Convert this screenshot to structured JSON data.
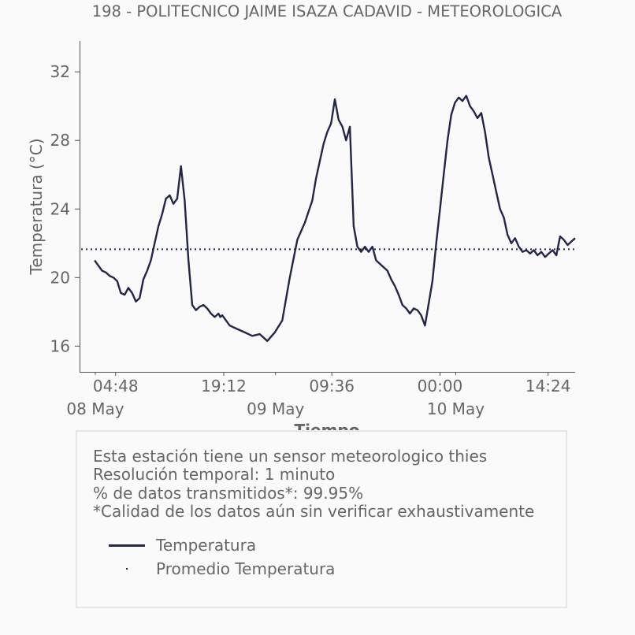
{
  "chart_data": {
    "type": "line",
    "title": "198 - POLITECNICO JAIME ISAZA CADAVID - METEOROLOGICA",
    "xlabel": "Tiempo",
    "ylabel": "Temperatura (°C)",
    "ylim": [
      14.5,
      33.8
    ],
    "xlim": [
      "2024-05-08 00:00",
      "2024-05-10 18:00"
    ],
    "y_ticks": [
      16,
      20,
      24,
      28,
      32
    ],
    "x_ticks": [
      {
        "time": "2024-05-08 04:48",
        "label": "04:48"
      },
      {
        "time": "2024-05-08 19:12",
        "label": "19:12"
      },
      {
        "time": "2024-05-09 09:36",
        "label": "09:36"
      },
      {
        "time": "2024-05-10 00:00",
        "label": "00:00"
      },
      {
        "time": "2024-05-10 14:24",
        "label": "14:24"
      }
    ],
    "date_labels": [
      {
        "time": "2024-05-08 00:00",
        "label": "08 May"
      },
      {
        "time": "2024-05-09 00:00",
        "label": "09 May"
      },
      {
        "time": "2024-05-10 00:00",
        "label": "10 May"
      }
    ],
    "grid": false,
    "series": [
      {
        "name": "Temperatura",
        "color": "#23264a",
        "style": "solid",
        "x": [
          "2024-05-08 02:00",
          "2024-05-08 02:30",
          "2024-05-08 03:00",
          "2024-05-08 03:30",
          "2024-05-08 04:00",
          "2024-05-08 04:30",
          "2024-05-08 05:00",
          "2024-05-08 05:30",
          "2024-05-08 06:00",
          "2024-05-08 06:30",
          "2024-05-08 07:00",
          "2024-05-08 07:30",
          "2024-05-08 08:00",
          "2024-05-08 08:30",
          "2024-05-08 09:00",
          "2024-05-08 09:30",
          "2024-05-08 10:00",
          "2024-05-08 10:30",
          "2024-05-08 11:00",
          "2024-05-08 11:30",
          "2024-05-08 12:00",
          "2024-05-08 12:30",
          "2024-05-08 13:00",
          "2024-05-08 13:30",
          "2024-05-08 14:00",
          "2024-05-08 14:30",
          "2024-05-08 15:00",
          "2024-05-08 15:30",
          "2024-05-08 16:00",
          "2024-05-08 16:30",
          "2024-05-08 17:00",
          "2024-05-08 17:30",
          "2024-05-08 18:00",
          "2024-05-08 18:15",
          "2024-05-08 18:30",
          "2024-05-08 18:45",
          "2024-05-08 19:00",
          "2024-05-08 20:00",
          "2024-05-08 21:00",
          "2024-05-08 22:00",
          "2024-05-08 23:00",
          "2024-05-09 00:00",
          "2024-05-09 01:00",
          "2024-05-09 02:00",
          "2024-05-09 03:00",
          "2024-05-09 04:00",
          "2024-05-09 05:00",
          "2024-05-09 06:00",
          "2024-05-09 07:00",
          "2024-05-09 07:30",
          "2024-05-09 08:00",
          "2024-05-09 08:30",
          "2024-05-09 09:00",
          "2024-05-09 09:30",
          "2024-05-09 10:00",
          "2024-05-09 10:30",
          "2024-05-09 11:00",
          "2024-05-09 11:30",
          "2024-05-09 12:00",
          "2024-05-09 12:30",
          "2024-05-09 13:00",
          "2024-05-09 13:30",
          "2024-05-09 14:00",
          "2024-05-09 14:30",
          "2024-05-09 15:00",
          "2024-05-09 15:30",
          "2024-05-09 16:00",
          "2024-05-09 16:15",
          "2024-05-09 16:30",
          "2024-05-09 16:45",
          "2024-05-09 17:00",
          "2024-05-09 17:30",
          "2024-05-09 18:00",
          "2024-05-09 18:30",
          "2024-05-09 19:00",
          "2024-05-09 19:30",
          "2024-05-09 20:00",
          "2024-05-09 20:30",
          "2024-05-09 21:00",
          "2024-05-09 21:30",
          "2024-05-09 22:00",
          "2024-05-09 22:30",
          "2024-05-09 23:00",
          "2024-05-09 23:30",
          "2024-05-10 00:00",
          "2024-05-10 00:30",
          "2024-05-10 01:00",
          "2024-05-10 01:30",
          "2024-05-10 02:00",
          "2024-05-10 02:30",
          "2024-05-10 03:00",
          "2024-05-10 03:30",
          "2024-05-10 04:00",
          "2024-05-10 04:30",
          "2024-05-10 05:00",
          "2024-05-10 05:30",
          "2024-05-10 06:00",
          "2024-05-10 06:30",
          "2024-05-10 07:00",
          "2024-05-10 07:30",
          "2024-05-10 08:00",
          "2024-05-10 08:30",
          "2024-05-10 09:00",
          "2024-05-10 09:30",
          "2024-05-10 10:00",
          "2024-05-10 10:30",
          "2024-05-10 11:00",
          "2024-05-10 11:30",
          "2024-05-10 12:00",
          "2024-05-10 12:30",
          "2024-05-10 13:00",
          "2024-05-10 13:30",
          "2024-05-10 14:00",
          "2024-05-10 14:30",
          "2024-05-10 15:00",
          "2024-05-10 15:30",
          "2024-05-10 16:00",
          "2024-05-10 16:30",
          "2024-05-10 17:00",
          "2024-05-10 17:30",
          "2024-05-10 18:00"
        ],
        "y": [
          21.0,
          20.7,
          20.4,
          20.3,
          20.1,
          20.0,
          19.8,
          19.1,
          19.0,
          19.4,
          19.1,
          18.6,
          18.8,
          19.9,
          20.4,
          21.0,
          22.0,
          23.0,
          23.7,
          24.6,
          24.8,
          24.3,
          24.6,
          26.5,
          24.5,
          21.0,
          18.4,
          18.1,
          18.3,
          18.4,
          18.2,
          17.9,
          17.7,
          17.8,
          17.9,
          17.7,
          17.8,
          17.2,
          17.0,
          16.8,
          16.6,
          16.7,
          16.3,
          16.8,
          17.5,
          20.0,
          22.2,
          23.2,
          24.5,
          25.8,
          26.8,
          27.8,
          28.5,
          29.0,
          30.4,
          29.2,
          28.8,
          28.0,
          28.8,
          23.0,
          21.8,
          21.5,
          21.8,
          21.5,
          21.8,
          21.0,
          20.8,
          20.7,
          20.6,
          20.5,
          20.4,
          19.9,
          19.5,
          19.0,
          18.4,
          18.2,
          17.9,
          18.2,
          18.1,
          17.8,
          17.2,
          18.5,
          19.8,
          22.0,
          24.0,
          26.0,
          28.0,
          29.5,
          30.2,
          30.5,
          30.3,
          30.6,
          30.0,
          29.7,
          29.3,
          29.6,
          28.5,
          27.0,
          26.0,
          25.0,
          24.0,
          23.5,
          22.5,
          22.0,
          22.3,
          21.8,
          21.5,
          21.6,
          21.4,
          21.6,
          21.3,
          21.5,
          21.2,
          21.4,
          21.6,
          21.3,
          22.4,
          22.2,
          21.9,
          22.1,
          22.3
        ]
      },
      {
        "name": "Promedio Temperatura",
        "color": "#23264a",
        "style": "dotted",
        "value": 21.65
      }
    ],
    "legend_position": "below"
  },
  "info": {
    "lines": [
      "Esta estación tiene un sensor meteorologico thies",
      "Resolución temporal: 1 minuto",
      "% de datos transmitidos*: 99.95%",
      "*Calidad de los datos aún sin verificar exhaustivamente"
    ],
    "legend": [
      {
        "label": "Temperatura",
        "marker": "line"
      },
      {
        "label": "Promedio Temperatura",
        "marker": "dot"
      }
    ]
  }
}
